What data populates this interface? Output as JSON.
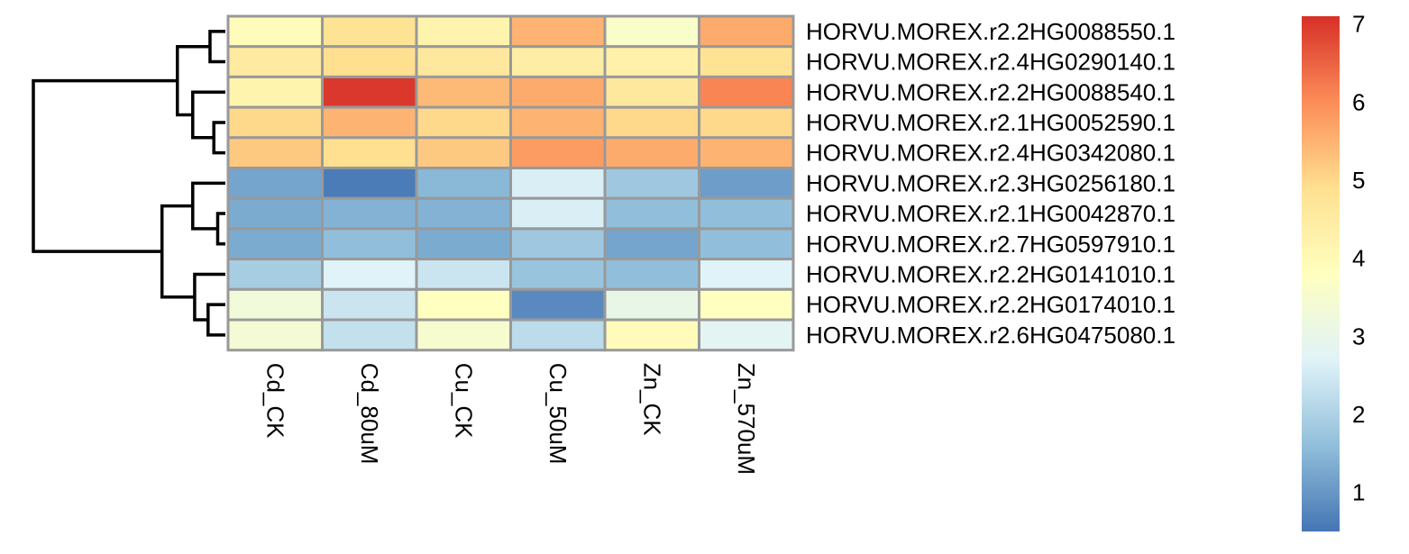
{
  "chart_data": {
    "type": "heatmap",
    "columns": [
      "Cd_CK",
      "Cd_80uM",
      "Cu_CK",
      "Cu_50uM",
      "Zn_CK",
      "Zn_570uM"
    ],
    "rows": [
      "HORVU.MOREX.r2.2HG0088550.1",
      "HORVU.MOREX.r2.4HG0290140.1",
      "HORVU.MOREX.r2.2HG0088540.1",
      "HORVU.MOREX.r2.1HG0052590.1",
      "HORVU.MOREX.r2.4HG0342080.1",
      "HORVU.MOREX.r2.3HG0256180.1",
      "HORVU.MOREX.r2.1HG0042870.1",
      "HORVU.MOREX.r2.7HG0597910.1",
      "HORVU.MOREX.r2.2HG0141010.1",
      "HORVU.MOREX.r2.2HG0174010.1",
      "HORVU.MOREX.r2.6HG0475080.1"
    ],
    "values": [
      [
        3.9,
        4.8,
        4.2,
        5.5,
        3.6,
        5.6
      ],
      [
        4.5,
        4.9,
        4.6,
        4.4,
        4.3,
        4.8
      ],
      [
        4.2,
        7.0,
        5.4,
        5.6,
        4.6,
        6.1
      ],
      [
        5.0,
        5.5,
        5.0,
        5.5,
        5.0,
        5.0
      ],
      [
        5.2,
        4.9,
        5.2,
        5.8,
        5.6,
        5.5
      ],
      [
        1.2,
        0.6,
        1.5,
        2.6,
        1.8,
        1.1
      ],
      [
        1.3,
        1.4,
        1.4,
        2.6,
        1.6,
        1.6
      ],
      [
        1.3,
        1.6,
        1.3,
        1.8,
        1.2,
        1.6
      ],
      [
        1.9,
        2.7,
        2.4,
        1.7,
        1.6,
        2.7
      ],
      [
        3.3,
        2.4,
        3.8,
        0.8,
        3.0,
        3.8
      ],
      [
        3.4,
        2.3,
        3.5,
        2.2,
        3.9,
        2.8
      ]
    ],
    "colorbar": {
      "range": [
        0.5,
        7.1
      ],
      "ticks": [
        "1",
        "2",
        "3",
        "4",
        "5",
        "6",
        "7"
      ],
      "tick_values": [
        1,
        2,
        3,
        4,
        5,
        6,
        7
      ],
      "colors": [
        "#4575B4",
        "#91BFDB",
        "#E0F3F8",
        "#FFFFBF",
        "#FEE090",
        "#FC8D59",
        "#D73027"
      ]
    },
    "row_dendrogram": [
      {
        "nodes": [
          0,
          1
        ],
        "height": 0.08
      },
      {
        "nodes": [
          3,
          4
        ],
        "height": 0.06
      },
      {
        "nodes": [
          2,
          "n2"
        ],
        "height": 0.17
      },
      {
        "nodes": [
          "n1",
          "n3"
        ],
        "height": 0.25
      },
      {
        "nodes": [
          6,
          7
        ],
        "height": 0.04
      },
      {
        "nodes": [
          5,
          "n5"
        ],
        "height": 0.17
      },
      {
        "nodes": [
          9,
          10
        ],
        "height": 0.09
      },
      {
        "nodes": [
          8,
          "n7"
        ],
        "height": 0.16
      },
      {
        "nodes": [
          "n6",
          "n8"
        ],
        "height": 0.33
      },
      {
        "nodes": [
          "n4",
          "n9"
        ],
        "height": 1.0
      }
    ],
    "grid_color": "#999999"
  }
}
